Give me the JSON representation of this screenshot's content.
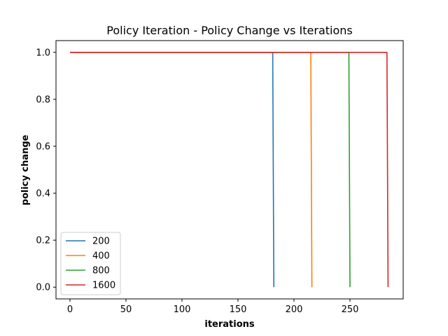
{
  "chart_data": {
    "type": "line",
    "title": "Policy Iteration - Policy Change vs Iterations",
    "xlabel": "iterations",
    "ylabel": "policy change",
    "xlim": [
      -12.5,
      297.5
    ],
    "ylim": [
      -0.05,
      1.05
    ],
    "xticks": [
      0,
      50,
      100,
      150,
      200,
      250
    ],
    "xtick_labels": [
      "0",
      "50",
      "100",
      "150",
      "200",
      "250"
    ],
    "yticks": [
      0.0,
      0.2,
      0.4,
      0.6,
      0.8,
      1.0
    ],
    "ytick_labels": [
      "0.0",
      "0.2",
      "0.4",
      "0.6",
      "0.8",
      "1.0"
    ],
    "grid": false,
    "legend_position": "lower-left",
    "series": [
      {
        "name": "200",
        "color": "#1f77b4",
        "x": [
          0,
          181,
          182
        ],
        "y": [
          1.0,
          1.0,
          0.0
        ]
      },
      {
        "name": "400",
        "color": "#ff7f0e",
        "x": [
          0,
          215,
          216
        ],
        "y": [
          1.0,
          1.0,
          0.0
        ]
      },
      {
        "name": "800",
        "color": "#2ca02c",
        "x": [
          0,
          249,
          250
        ],
        "y": [
          1.0,
          1.0,
          0.0
        ]
      },
      {
        "name": "1600",
        "color": "#d62728",
        "x": [
          0,
          283,
          284
        ],
        "y": [
          1.0,
          1.0,
          0.0
        ]
      }
    ]
  }
}
